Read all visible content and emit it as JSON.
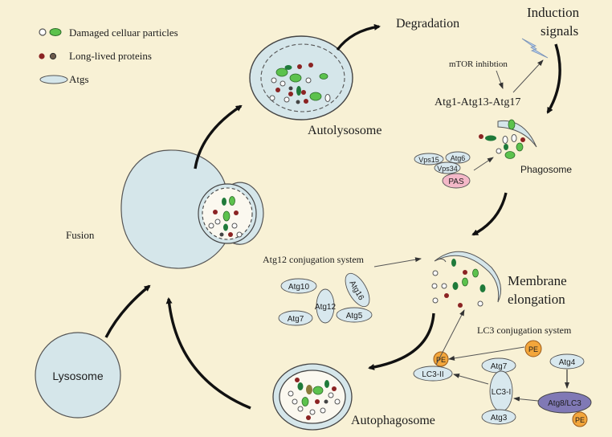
{
  "legend": {
    "damaged": "Damaged celluar particles",
    "longlived": "Long-lived proteins",
    "atgs": "Atgs"
  },
  "labels": {
    "degradation": "Degradation",
    "induction_line1": "Induction",
    "induction_line2": "signals",
    "mtor": "mTOR inhibtion",
    "atg1_complex": "Atg1-Atg13-Atg17",
    "autolysosome": "Autolysosome",
    "phagosome": "Phagosome",
    "fusion": "Fusion",
    "atg12_system": "Atg12 conjugation system",
    "membrane_line1": "Membrane",
    "membrane_line2": "elongation",
    "lc3_system": "LC3 conjugation system",
    "lysosome": "Lysosome",
    "autophagosome": "Autophagosome"
  },
  "proteins": {
    "vps15": "Vps15",
    "atg6": "Atg6",
    "vps34": "Vps34",
    "pas": "PAS",
    "atg10": "Atg10",
    "atg12": "Atg12",
    "atg16": "Atg16",
    "atg7_top": "Atg7",
    "atg5": "Atg5",
    "pe_top": "PE",
    "pe_left": "PE",
    "pe_bottom": "PE",
    "atg4": "Atg4",
    "atg7_lc3": "Atg7",
    "lc3_i": "LC3-I",
    "lc3_ii": "LC3-II",
    "atg3": "Atg3",
    "atg8_lc3": "Atg8/LC3"
  },
  "colors": {
    "background": "#f8f1d5",
    "organelle_fill": "#d5e6ea",
    "protein_fill": "#d8e8ee",
    "green_particle": "#5cc24d",
    "dark_green_particle": "#1f7a3a",
    "red_particle": "#8b2323",
    "pas_fill": "#f4b8c8",
    "pe_fill": "#f3a63b",
    "atg8_fill": "#8079b5"
  }
}
